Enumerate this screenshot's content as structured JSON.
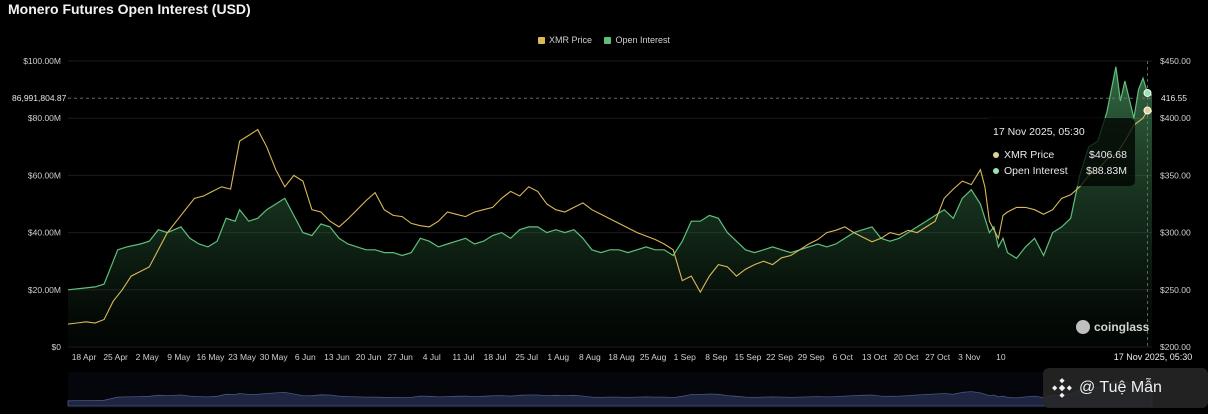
{
  "chart_data": {
    "type": "area",
    "title": "Monero Futures Open Interest (USD)",
    "legend": [
      "XMR Price",
      "Open Interest"
    ],
    "legend_position": "top-center",
    "colors": {
      "price": "#d9b95a",
      "oi": "#5fbf7a",
      "tooltip_price_dot": "#e0cf9a",
      "tooltip_oi_dot": "#9ee0b0"
    },
    "y_left": {
      "ticks": [
        "$100.00M",
        "$80.00M",
        "$60.00M",
        "$40.00M",
        "$20.00M",
        "$0"
      ],
      "range": [
        0,
        100
      ]
    },
    "y_right": {
      "ticks": [
        "$450.00",
        "$400.00",
        "$350.00",
        "$300.00",
        "$250.00",
        "$200.00"
      ],
      "range": [
        200,
        450
      ]
    },
    "x_ticks": [
      "18 Apr",
      "25 Apr",
      "2 May",
      "9 May",
      "16 May",
      "23 May",
      "30 May",
      "6 Jun",
      "13 Jun",
      "20 Jun",
      "27 Jun",
      "4 Jul",
      "11 Jul",
      "18 Jul",
      "25 Jul",
      "1 Aug",
      "8 Aug",
      "18 Aug",
      "25 Aug",
      "1 Sep",
      "8 Sep",
      "15 Sep",
      "22 Sep",
      "29 Sep",
      "6 Oct",
      "13 Oct",
      "20 Oct",
      "27 Oct",
      "3 Nov",
      "10"
    ],
    "x_day_start": "18 Apr",
    "crosshair_left_label": "86,991,804.87",
    "crosshair_right_label": "416.55",
    "crosshair_value": 86.99,
    "crosshair_x_label": "17 Nov 2025, 05:30",
    "tooltip": {
      "date": "17 Nov 2025, 05:30",
      "rows": [
        {
          "label": "XMR Price",
          "value": "$406.68"
        },
        {
          "label": "Open Interest",
          "value": "$88.83M"
        }
      ]
    },
    "series": [
      {
        "name": "Open Interest",
        "axis": "left",
        "unit": "USD millions",
        "points": [
          [
            0,
            20
          ],
          [
            3,
            20.5
          ],
          [
            6,
            21
          ],
          [
            8,
            22
          ],
          [
            10,
            30
          ],
          [
            11,
            34
          ],
          [
            13,
            35
          ],
          [
            16,
            36
          ],
          [
            18,
            37
          ],
          [
            20,
            41
          ],
          [
            22,
            40
          ],
          [
            25,
            42
          ],
          [
            27,
            38
          ],
          [
            29,
            36
          ],
          [
            31,
            35
          ],
          [
            33,
            37
          ],
          [
            35,
            45
          ],
          [
            37,
            44
          ],
          [
            38,
            48
          ],
          [
            40,
            44
          ],
          [
            42,
            45
          ],
          [
            44,
            48
          ],
          [
            46,
            50
          ],
          [
            48,
            52
          ],
          [
            50,
            46
          ],
          [
            52,
            40
          ],
          [
            54,
            39
          ],
          [
            56,
            43
          ],
          [
            58,
            42
          ],
          [
            60,
            38
          ],
          [
            62,
            36
          ],
          [
            64,
            35
          ],
          [
            66,
            34
          ],
          [
            68,
            34
          ],
          [
            70,
            33
          ],
          [
            72,
            33
          ],
          [
            74,
            32
          ],
          [
            76,
            33
          ],
          [
            78,
            38
          ],
          [
            80,
            37
          ],
          [
            82,
            35
          ],
          [
            84,
            36
          ],
          [
            86,
            37
          ],
          [
            88,
            38
          ],
          [
            90,
            36
          ],
          [
            92,
            37
          ],
          [
            94,
            39
          ],
          [
            96,
            40
          ],
          [
            98,
            38
          ],
          [
            100,
            41
          ],
          [
            102,
            42
          ],
          [
            104,
            42
          ],
          [
            106,
            40
          ],
          [
            108,
            41
          ],
          [
            110,
            40
          ],
          [
            112,
            41
          ],
          [
            114,
            38
          ],
          [
            116,
            34
          ],
          [
            118,
            33
          ],
          [
            120,
            34
          ],
          [
            122,
            34
          ],
          [
            124,
            33
          ],
          [
            126,
            34
          ],
          [
            128,
            35
          ],
          [
            130,
            34
          ],
          [
            132,
            34
          ],
          [
            134,
            32
          ],
          [
            136,
            37
          ],
          [
            138,
            44
          ],
          [
            140,
            44
          ],
          [
            142,
            46
          ],
          [
            144,
            45
          ],
          [
            146,
            40
          ],
          [
            148,
            37
          ],
          [
            150,
            34
          ],
          [
            152,
            33
          ],
          [
            154,
            34
          ],
          [
            156,
            35
          ],
          [
            158,
            34
          ],
          [
            160,
            33
          ],
          [
            162,
            34
          ],
          [
            164,
            35
          ],
          [
            166,
            36
          ],
          [
            168,
            35
          ],
          [
            170,
            36
          ],
          [
            172,
            38
          ],
          [
            174,
            40
          ],
          [
            176,
            41
          ],
          [
            178,
            42
          ],
          [
            180,
            38
          ],
          [
            182,
            37
          ],
          [
            184,
            38
          ],
          [
            186,
            40
          ],
          [
            188,
            42
          ],
          [
            190,
            44
          ],
          [
            192,
            46
          ],
          [
            194,
            48
          ],
          [
            196,
            45
          ],
          [
            198,
            52
          ],
          [
            200,
            55
          ],
          [
            202,
            50
          ],
          [
            204,
            40
          ],
          [
            205,
            42
          ],
          [
            206,
            35
          ],
          [
            207,
            38
          ],
          [
            208,
            33
          ],
          [
            210,
            31
          ],
          [
            212,
            35
          ],
          [
            214,
            38
          ],
          [
            216,
            32
          ],
          [
            218,
            40
          ],
          [
            220,
            42
          ],
          [
            222,
            45
          ],
          [
            224,
            60
          ],
          [
            226,
            70
          ],
          [
            228,
            72
          ],
          [
            230,
            82
          ],
          [
            232,
            98
          ],
          [
            233,
            86
          ],
          [
            234,
            93
          ],
          [
            236,
            80
          ],
          [
            237,
            90
          ],
          [
            238,
            94
          ],
          [
            239,
            88.83
          ],
          [
            240,
            88
          ]
        ]
      },
      {
        "name": "XMR Price",
        "axis": "right",
        "unit": "USD",
        "points": [
          [
            0,
            220
          ],
          [
            2,
            221
          ],
          [
            4,
            222
          ],
          [
            6,
            221
          ],
          [
            8,
            224
          ],
          [
            10,
            240
          ],
          [
            12,
            250
          ],
          [
            14,
            262
          ],
          [
            16,
            266
          ],
          [
            18,
            270
          ],
          [
            20,
            285
          ],
          [
            22,
            300
          ],
          [
            24,
            310
          ],
          [
            26,
            320
          ],
          [
            28,
            330
          ],
          [
            30,
            332
          ],
          [
            32,
            336
          ],
          [
            34,
            340
          ],
          [
            36,
            338
          ],
          [
            38,
            380
          ],
          [
            40,
            385
          ],
          [
            42,
            390
          ],
          [
            44,
            375
          ],
          [
            46,
            355
          ],
          [
            48,
            340
          ],
          [
            50,
            350
          ],
          [
            52,
            345
          ],
          [
            54,
            320
          ],
          [
            56,
            318
          ],
          [
            58,
            310
          ],
          [
            60,
            305
          ],
          [
            62,
            312
          ],
          [
            64,
            320
          ],
          [
            66,
            328
          ],
          [
            68,
            335
          ],
          [
            70,
            320
          ],
          [
            72,
            315
          ],
          [
            74,
            314
          ],
          [
            76,
            308
          ],
          [
            78,
            306
          ],
          [
            80,
            305
          ],
          [
            82,
            310
          ],
          [
            84,
            318
          ],
          [
            86,
            316
          ],
          [
            88,
            314
          ],
          [
            90,
            318
          ],
          [
            92,
            320
          ],
          [
            94,
            322
          ],
          [
            96,
            330
          ],
          [
            98,
            336
          ],
          [
            100,
            332
          ],
          [
            102,
            340
          ],
          [
            104,
            336
          ],
          [
            106,
            325
          ],
          [
            108,
            320
          ],
          [
            110,
            318
          ],
          [
            112,
            322
          ],
          [
            114,
            326
          ],
          [
            116,
            320
          ],
          [
            118,
            316
          ],
          [
            120,
            312
          ],
          [
            122,
            308
          ],
          [
            124,
            304
          ],
          [
            126,
            300
          ],
          [
            128,
            297
          ],
          [
            130,
            294
          ],
          [
            132,
            290
          ],
          [
            134,
            285
          ],
          [
            136,
            258
          ],
          [
            138,
            262
          ],
          [
            140,
            248
          ],
          [
            142,
            262
          ],
          [
            144,
            272
          ],
          [
            146,
            270
          ],
          [
            148,
            262
          ],
          [
            150,
            268
          ],
          [
            152,
            272
          ],
          [
            154,
            275
          ],
          [
            156,
            272
          ],
          [
            158,
            278
          ],
          [
            160,
            280
          ],
          [
            162,
            285
          ],
          [
            164,
            290
          ],
          [
            166,
            294
          ],
          [
            168,
            300
          ],
          [
            170,
            302
          ],
          [
            172,
            305
          ],
          [
            174,
            300
          ],
          [
            176,
            296
          ],
          [
            178,
            292
          ],
          [
            180,
            295
          ],
          [
            182,
            300
          ],
          [
            184,
            298
          ],
          [
            186,
            302
          ],
          [
            188,
            300
          ],
          [
            190,
            305
          ],
          [
            192,
            310
          ],
          [
            194,
            330
          ],
          [
            196,
            338
          ],
          [
            198,
            345
          ],
          [
            200,
            342
          ],
          [
            202,
            355
          ],
          [
            203,
            340
          ],
          [
            204,
            310
          ],
          [
            206,
            295
          ],
          [
            207,
            315
          ],
          [
            208,
            318
          ],
          [
            210,
            322
          ],
          [
            212,
            322
          ],
          [
            214,
            320
          ],
          [
            216,
            316
          ],
          [
            218,
            320
          ],
          [
            220,
            330
          ],
          [
            222,
            333
          ],
          [
            224,
            340
          ],
          [
            226,
            350
          ],
          [
            228,
            355
          ],
          [
            230,
            364
          ],
          [
            232,
            368
          ],
          [
            234,
            380
          ],
          [
            236,
            394
          ],
          [
            238,
            400
          ],
          [
            239,
            406.68
          ],
          [
            240,
            406
          ]
        ]
      }
    ]
  },
  "watermark": "coinglass",
  "badge": {
    "icon": "binance-logo-icon",
    "text": "@ Tuệ Mẫn"
  }
}
